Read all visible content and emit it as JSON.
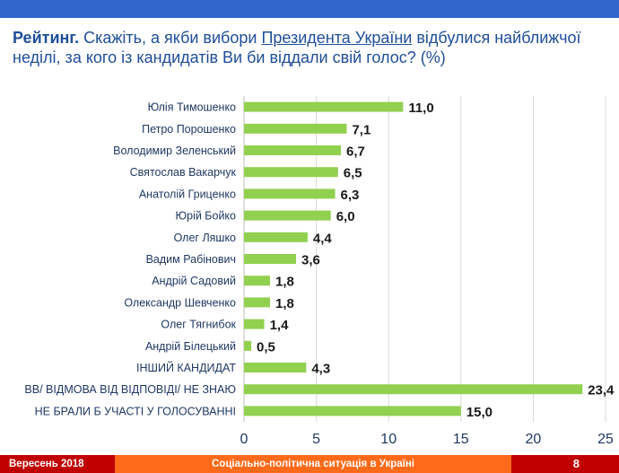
{
  "header": {
    "title_bold": "Рейтинг.",
    "title_part1": " Скажіть, а якби вибори ",
    "title_underlined": "Президента України",
    "title_part2": " відбулися найближчої неділі, за кого із кандидатів Ви би віддали свій голос? (%)"
  },
  "chart_data": {
    "type": "bar",
    "orientation": "horizontal",
    "categories": [
      "Юлія Тимошенко",
      "Петро Порошенко",
      "Володимир Зеленський",
      "Святослав Вакарчук",
      "Анатолій Гриценко",
      "Юрій Бойко",
      "Олег Ляшко",
      "Вадим Рабінович",
      "Андрій Садовий",
      "Олександр Шевченко",
      "Олег Тягнибок",
      "Андрій Білецький",
      "ІНШИЙ КАНДИДАТ",
      "ВВ/ ВІДМОВА ВІД ВІДПОВІДІ/ НЕ ЗНАЮ",
      "НЕ БРАЛИ Б УЧАСТІ У ГОЛОСУВАННІ"
    ],
    "values": [
      11.0,
      7.1,
      6.7,
      6.5,
      6.3,
      6.0,
      4.4,
      3.6,
      1.8,
      1.8,
      1.4,
      0.5,
      4.3,
      23.4,
      15.0
    ],
    "value_labels": [
      "11,0",
      "7,1",
      "6,7",
      "6,5",
      "6,3",
      "6,0",
      "4,4",
      "3,6",
      "1,8",
      "1,8",
      "1,4",
      "0,5",
      "4,3",
      "23,4",
      "15,0"
    ],
    "xlim": [
      0,
      25
    ],
    "xticks": [
      0,
      5,
      10,
      15,
      20,
      25
    ],
    "grid": true,
    "bar_color": "#92d050"
  },
  "footer": {
    "date": "Вересень 2018",
    "center": "Соціально-політична ситуація в Україні",
    "page": "8"
  }
}
